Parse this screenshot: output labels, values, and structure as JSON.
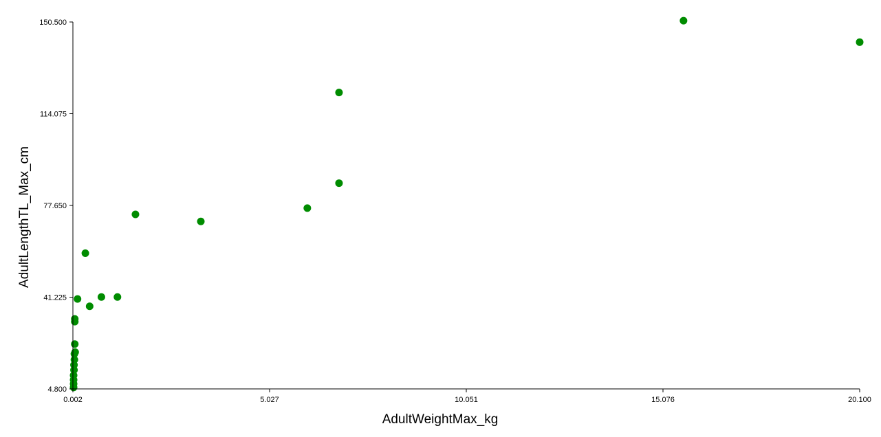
{
  "chart_data": {
    "type": "scatter",
    "xlabel": "AdultWeightMax_kg",
    "ylabel": "AdultLengthTL_Max_cm",
    "xlim": [
      0.002,
      20.1
    ],
    "ylim": [
      4.8,
      150.5
    ],
    "x_ticks": [
      "0.002",
      "5.027",
      "10.051",
      "15.076",
      "20.100"
    ],
    "y_ticks": [
      "4.800",
      "41.225",
      "77.650",
      "114.075",
      "150.500"
    ],
    "grid": false,
    "marker_color": "#008c00",
    "points": [
      {
        "x": 15.6,
        "y": 151.0
      },
      {
        "x": 20.1,
        "y": 142.5
      },
      {
        "x": 6.8,
        "y": 122.5
      },
      {
        "x": 6.8,
        "y": 86.5
      },
      {
        "x": 5.99,
        "y": 76.6
      },
      {
        "x": 3.27,
        "y": 71.3
      },
      {
        "x": 1.6,
        "y": 74.1
      },
      {
        "x": 0.32,
        "y": 58.7
      },
      {
        "x": 0.73,
        "y": 41.3
      },
      {
        "x": 1.14,
        "y": 41.3
      },
      {
        "x": 0.12,
        "y": 40.5
      },
      {
        "x": 0.43,
        "y": 37.6
      },
      {
        "x": 0.05,
        "y": 32.6
      },
      {
        "x": 0.05,
        "y": 31.5
      },
      {
        "x": 0.05,
        "y": 22.6
      },
      {
        "x": 0.06,
        "y": 19.4
      },
      {
        "x": 0.04,
        "y": 18.7
      },
      {
        "x": 0.04,
        "y": 16.4
      },
      {
        "x": 0.03,
        "y": 14.3
      },
      {
        "x": 0.03,
        "y": 12.3
      },
      {
        "x": 0.02,
        "y": 10.2
      },
      {
        "x": 0.02,
        "y": 8.4
      },
      {
        "x": 0.02,
        "y": 6.8
      },
      {
        "x": 0.02,
        "y": 5.4
      }
    ]
  }
}
